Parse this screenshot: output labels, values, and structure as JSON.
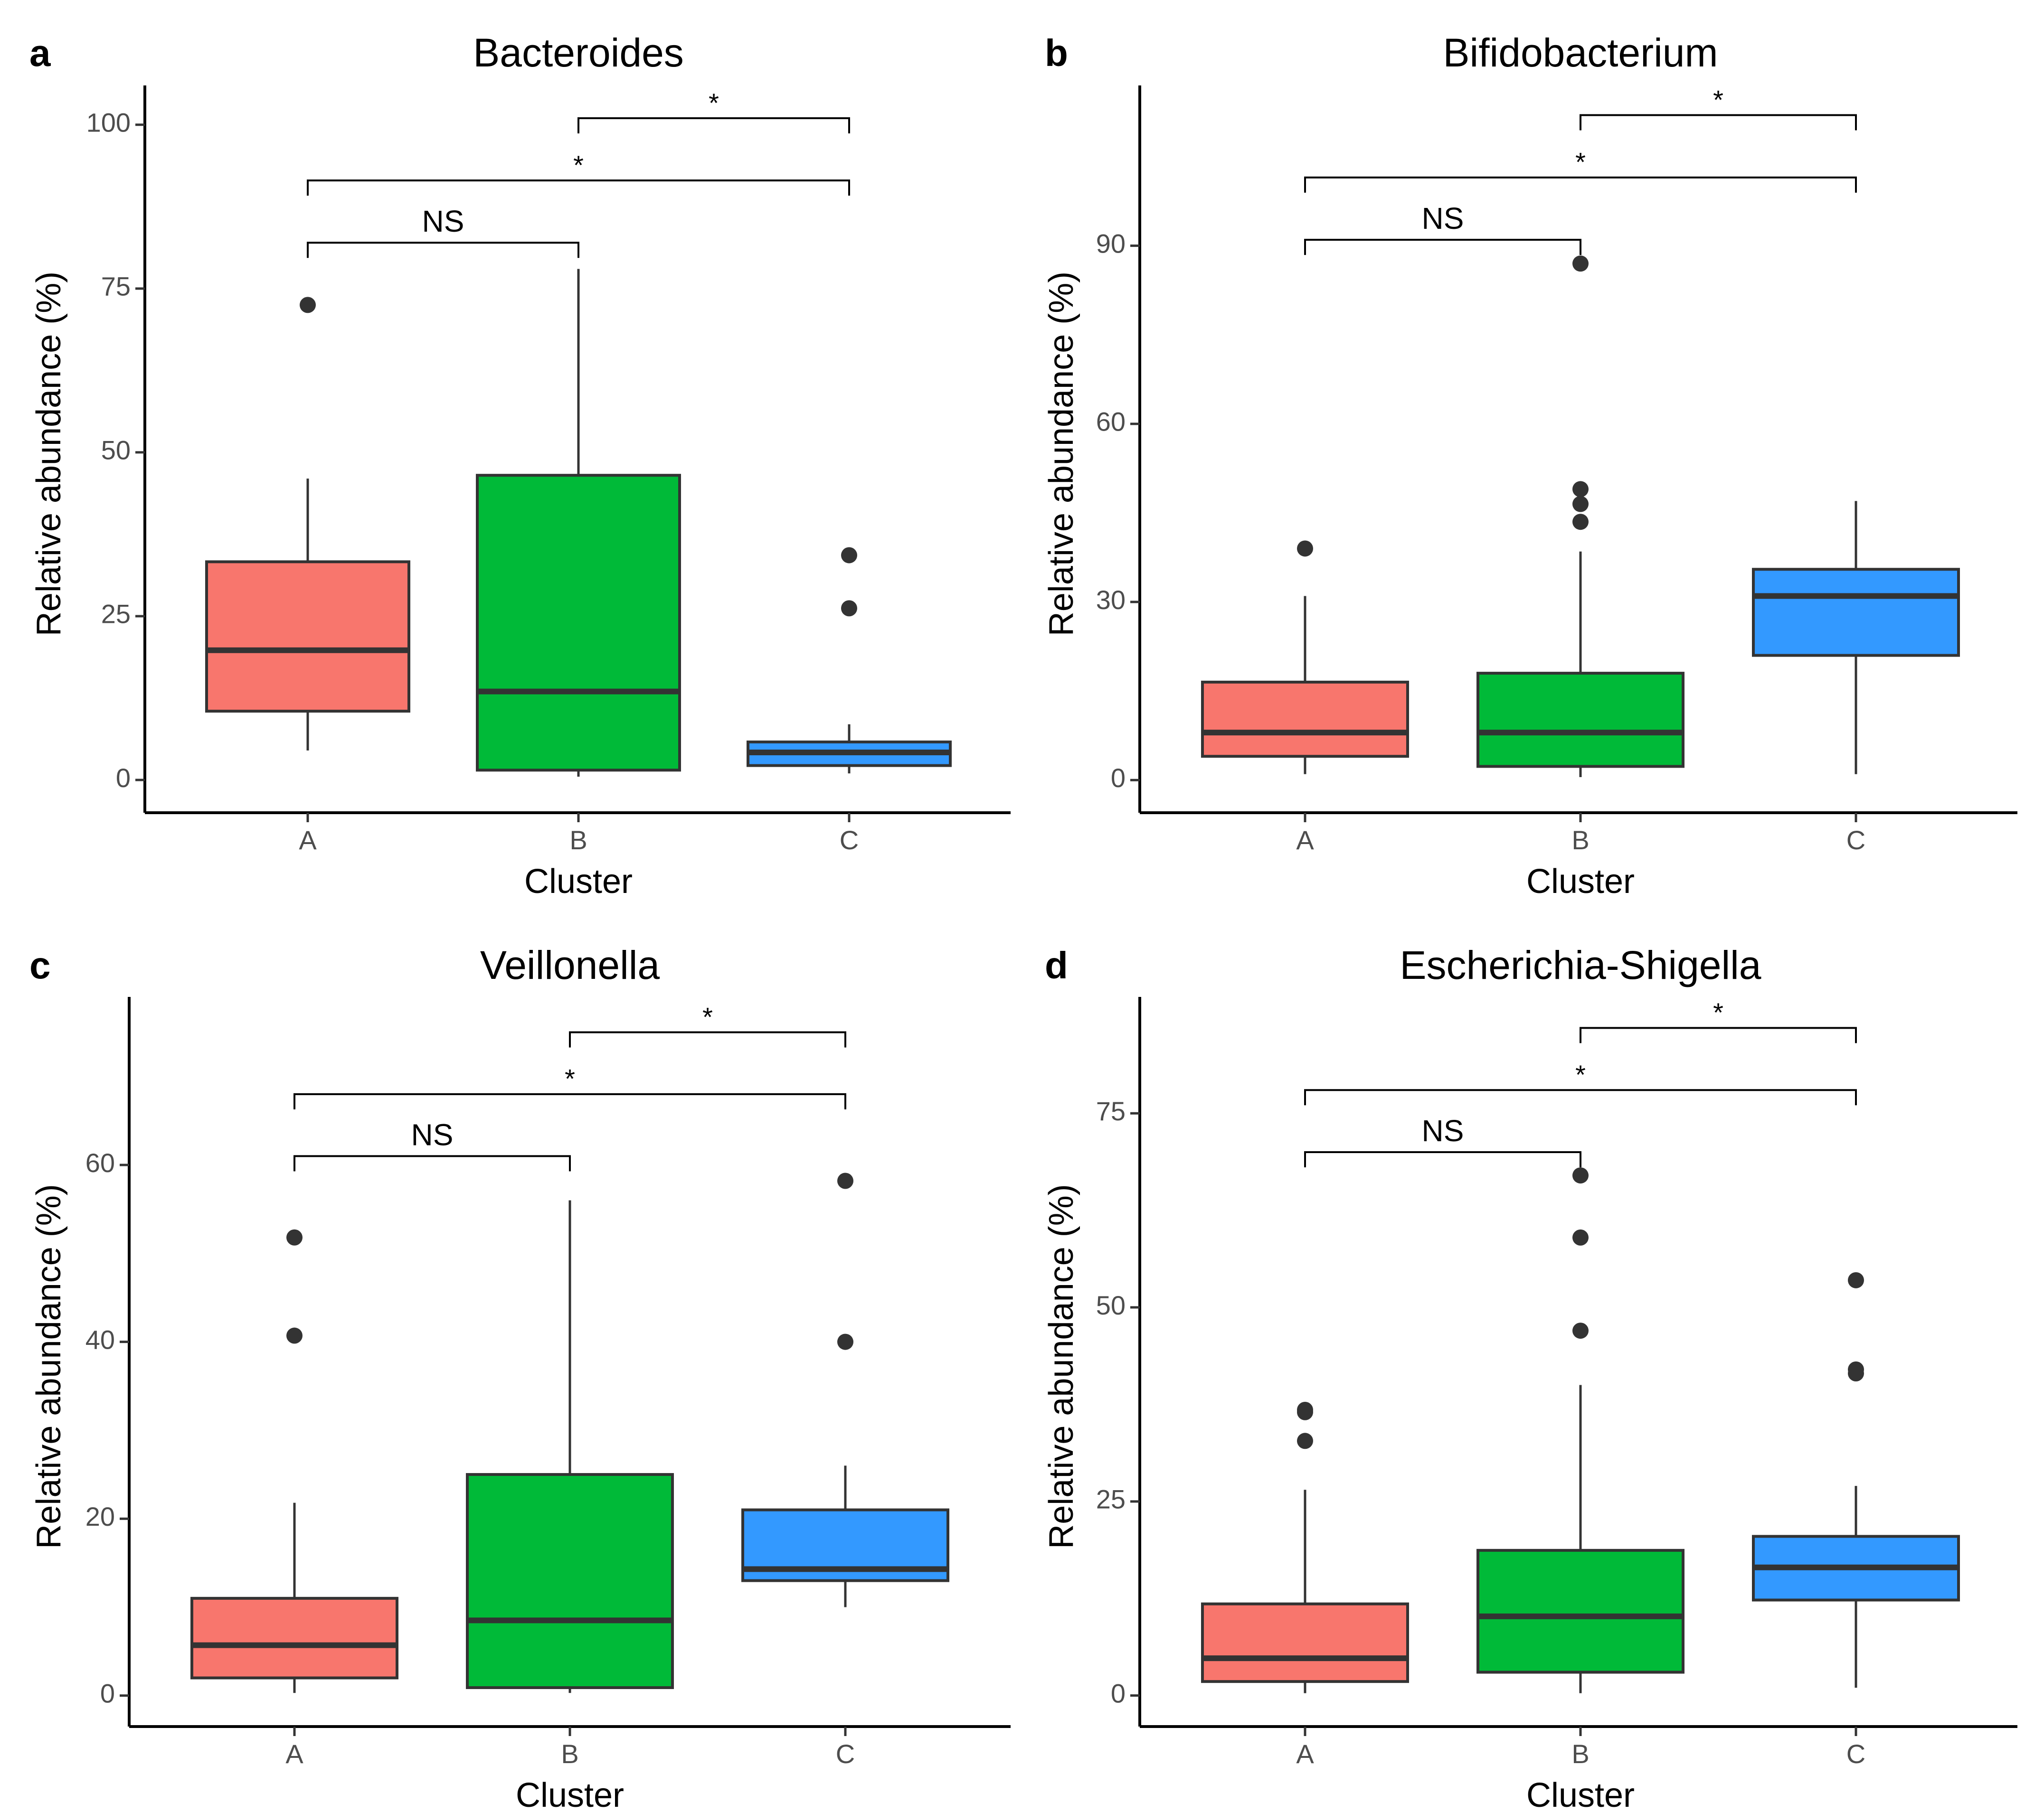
{
  "figure": {
    "xlabel": "Cluster",
    "ylabel": "Relative abundance (%)"
  },
  "colors": {
    "A": "#F8766D",
    "B": "#00BA38",
    "C": "#3399FF"
  },
  "chart_data": [
    {
      "type": "box",
      "panel": "a",
      "title": "Bacteroides",
      "xlabel": "Cluster",
      "ylabel": "Relative abundance (%)",
      "ylim": [
        -5,
        106
      ],
      "yticks": [
        0,
        25,
        50,
        75,
        100
      ],
      "categories": [
        "A",
        "B",
        "C"
      ],
      "boxes": [
        {
          "category": "A",
          "whisker_low": 4.5,
          "q1": 10.5,
          "median": 19.8,
          "q3": 33.3,
          "whisker_high": 46,
          "outliers": [
            72.5
          ]
        },
        {
          "category": "B",
          "whisker_low": 0.5,
          "q1": 1.5,
          "median": 13.5,
          "q3": 46.5,
          "whisker_high": 78,
          "outliers": []
        },
        {
          "category": "C",
          "whisker_low": 1,
          "q1": 2.2,
          "median": 4.2,
          "q3": 5.8,
          "whisker_high": 8.5,
          "outliers": [
            26.2,
            34.3
          ]
        }
      ],
      "comparisons": [
        {
          "from": "A",
          "to": "B",
          "label": "NS",
          "y": 82
        },
        {
          "from": "A",
          "to": "C",
          "label": "*",
          "y": 91.5
        },
        {
          "from": "B",
          "to": "C",
          "label": "*",
          "y": 101
        }
      ]
    },
    {
      "type": "box",
      "panel": "b",
      "title": "Bifidobacterium",
      "xlabel": "Cluster",
      "ylabel": "Relative abundance (%)",
      "ylim": [
        -5.5,
        117
      ],
      "yticks": [
        0,
        30,
        60,
        90
      ],
      "categories": [
        "A",
        "B",
        "C"
      ],
      "boxes": [
        {
          "category": "A",
          "whisker_low": 1,
          "q1": 4,
          "median": 8,
          "q3": 16.5,
          "whisker_high": 31,
          "outliers": [
            39
          ]
        },
        {
          "category": "B",
          "whisker_low": 0.5,
          "q1": 2.3,
          "median": 8,
          "q3": 18,
          "whisker_high": 38.5,
          "outliers": [
            43.5,
            46.5,
            49,
            87
          ]
        },
        {
          "category": "C",
          "whisker_low": 1,
          "q1": 21,
          "median": 31,
          "q3": 35.5,
          "whisker_high": 47,
          "outliers": []
        }
      ],
      "comparisons": [
        {
          "from": "A",
          "to": "B",
          "label": "NS",
          "y": 91
        },
        {
          "from": "A",
          "to": "C",
          "label": "*",
          "y": 101.5
        },
        {
          "from": "B",
          "to": "C",
          "label": "*",
          "y": 112
        }
      ]
    },
    {
      "type": "box",
      "panel": "c",
      "title": "Veillonella",
      "xlabel": "Cluster",
      "ylabel": "Relative abundance (%)",
      "ylim": [
        -3.5,
        79
      ],
      "yticks": [
        0,
        20,
        40,
        60
      ],
      "categories": [
        "A",
        "B",
        "C"
      ],
      "boxes": [
        {
          "category": "A",
          "whisker_low": 0.3,
          "q1": 2,
          "median": 5.7,
          "q3": 11,
          "whisker_high": 21.8,
          "outliers": [
            40.7,
            51.8
          ]
        },
        {
          "category": "B",
          "whisker_low": 0.3,
          "q1": 0.9,
          "median": 8.5,
          "q3": 25,
          "whisker_high": 56,
          "outliers": []
        },
        {
          "category": "C",
          "whisker_low": 10,
          "q1": 13,
          "median": 14.3,
          "q3": 21,
          "whisker_high": 26,
          "outliers": [
            40,
            58.2
          ]
        }
      ],
      "comparisons": [
        {
          "from": "A",
          "to": "B",
          "label": "NS",
          "y": 61
        },
        {
          "from": "A",
          "to": "C",
          "label": "*",
          "y": 68
        },
        {
          "from": "B",
          "to": "C",
          "label": "*",
          "y": 75
        }
      ]
    },
    {
      "type": "box",
      "panel": "d",
      "title": "Escherichia-Shigella",
      "xlabel": "Cluster",
      "ylabel": "Relative abundance (%)",
      "ylim": [
        -4,
        90
      ],
      "yticks": [
        0,
        25,
        50,
        75
      ],
      "categories": [
        "A",
        "B",
        "C"
      ],
      "boxes": [
        {
          "category": "A",
          "whisker_low": 0.3,
          "q1": 1.8,
          "median": 4.8,
          "q3": 11.8,
          "whisker_high": 26.5,
          "outliers": [
            32.8,
            36.5,
            36.8
          ]
        },
        {
          "category": "B",
          "whisker_low": 0.3,
          "q1": 3,
          "median": 10.2,
          "q3": 18.7,
          "whisker_high": 40,
          "outliers": [
            47,
            59,
            67
          ]
        },
        {
          "category": "C",
          "whisker_low": 1,
          "q1": 12.3,
          "median": 16.5,
          "q3": 20.5,
          "whisker_high": 27,
          "outliers": [
            41.5,
            42,
            53.5
          ]
        }
      ],
      "comparisons": [
        {
          "from": "A",
          "to": "B",
          "label": "NS",
          "y": 70
        },
        {
          "from": "A",
          "to": "C",
          "label": "*",
          "y": 78
        },
        {
          "from": "B",
          "to": "C",
          "label": "*",
          "y": 86
        }
      ]
    }
  ]
}
